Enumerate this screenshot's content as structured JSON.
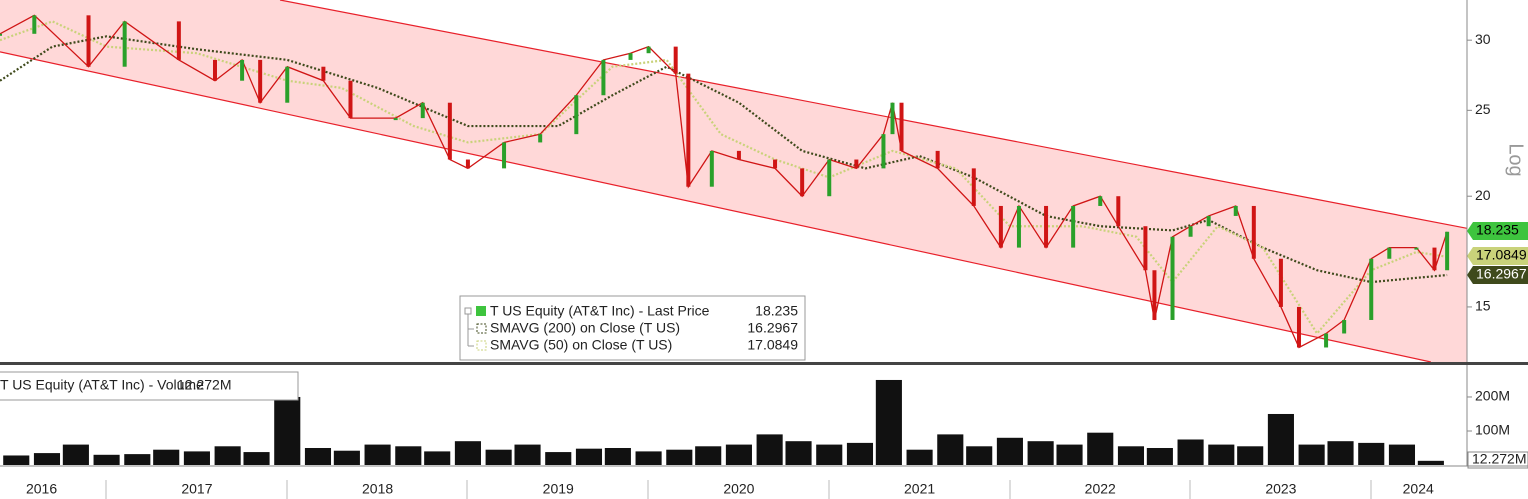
{
  "chart_data": [
    {
      "type": "line",
      "yscale": "log",
      "log_label": "Log",
      "xlim": [
        2016.41,
        2024.53
      ],
      "ylim": [
        13,
        33.3
      ],
      "yticks": [
        15,
        20,
        25,
        30
      ],
      "up_color": "#2aa02a",
      "down_color": "#d01515",
      "series": [
        {
          "name": "T US Equity (AT&T Inc) - Last Price",
          "color": "#3ec43e",
          "x": [
            2016.41,
            2016.6,
            2016.9,
            2017.1,
            2017.4,
            2017.6,
            2017.75,
            2017.85,
            2018.0,
            2018.2,
            2018.35,
            2018.6,
            2018.75,
            2018.9,
            2019.0,
            2019.2,
            2019.4,
            2019.6,
            2019.75,
            2019.9,
            2020.0,
            2020.15,
            2020.22,
            2020.35,
            2020.5,
            2020.7,
            2020.85,
            2021.0,
            2021.15,
            2021.3,
            2021.35,
            2021.4,
            2021.6,
            2021.8,
            2021.95,
            2022.05,
            2022.2,
            2022.35,
            2022.5,
            2022.6,
            2022.75,
            2022.8,
            2022.9,
            2023.0,
            2023.1,
            2023.25,
            2023.35,
            2023.5,
            2023.6,
            2023.75,
            2023.85,
            2024.0,
            2024.1,
            2024.25,
            2024.35,
            2024.42
          ],
          "values": [
            30.5,
            32,
            28,
            31.5,
            28.5,
            27,
            28.5,
            25.5,
            28,
            27,
            24.5,
            24.5,
            25.5,
            22,
            21.5,
            23,
            23.5,
            26,
            28.5,
            29,
            29.5,
            27.5,
            20.5,
            22.5,
            22,
            21.5,
            20,
            22,
            21.5,
            23.5,
            25.5,
            22.5,
            21.5,
            19.5,
            17.5,
            19.5,
            17.5,
            19.5,
            20,
            18.5,
            16.5,
            14.5,
            18,
            18.5,
            19,
            19.5,
            17,
            15,
            13.5,
            14,
            14.5,
            17,
            17.5,
            17.5,
            16.5,
            18.235
          ]
        },
        {
          "name": "SMAVG (200)  on Close (T US)",
          "color": "#3f4a1c",
          "text_color": "#ffffff",
          "x": [
            2016.41,
            2016.7,
            2017.0,
            2017.5,
            2018.0,
            2018.5,
            2019.0,
            2019.5,
            2019.8,
            2020.1,
            2020.5,
            2020.85,
            2021.2,
            2021.5,
            2021.8,
            2022.2,
            2022.5,
            2022.9,
            2023.1,
            2023.4,
            2023.7,
            2024.0,
            2024.42
          ],
          "values": [
            27,
            29.5,
            30.3,
            29.3,
            28.5,
            26.5,
            24,
            24,
            26,
            28,
            25.5,
            22.5,
            21.5,
            22.2,
            21,
            19,
            18.5,
            18.3,
            18.8,
            17.5,
            16.5,
            16,
            16.2967
          ]
        },
        {
          "name": "SMAVG (50)  on Close (T US)",
          "color": "#c9d27a",
          "text_color": "#000000",
          "x": [
            2016.41,
            2016.7,
            2017.0,
            2017.5,
            2018.0,
            2018.3,
            2018.7,
            2019.0,
            2019.4,
            2019.8,
            2020.1,
            2020.4,
            2020.7,
            2021.0,
            2021.35,
            2021.7,
            2022.0,
            2022.4,
            2022.7,
            2022.9,
            2023.15,
            2023.4,
            2023.7,
            2024.0,
            2024.25,
            2024.42
          ],
          "values": [
            30,
            31.5,
            29.5,
            29,
            27,
            26.5,
            24,
            23,
            23.5,
            28,
            28.5,
            23.5,
            22,
            21,
            22.5,
            21.5,
            18.5,
            18.5,
            18,
            16,
            18.5,
            17.5,
            14,
            16.5,
            17.3,
            17.0849
          ]
        }
      ],
      "channel": {
        "color": "#ffd8d8",
        "line_color": "#e8202a",
        "upper": {
          "x": [
            2017.96,
            2024.53
          ],
          "values": [
            33.3,
            18.4
          ]
        },
        "lower": {
          "x": [
            2016.41,
            2024.33
          ],
          "values": [
            29.1,
            13.0
          ]
        }
      }
    },
    {
      "type": "bar",
      "xlim": [
        2016.41,
        2024.53
      ],
      "ylim": [
        0,
        294
      ],
      "yticks": [
        {
          "value": 100,
          "label": "100M"
        },
        {
          "value": 200,
          "label": "200M"
        }
      ],
      "xticks": [
        {
          "value": 2016.64,
          "label": "2016"
        },
        {
          "value": 2017.5,
          "label": "2017"
        },
        {
          "value": 2018.5,
          "label": "2018"
        },
        {
          "value": 2019.5,
          "label": "2019"
        },
        {
          "value": 2020.5,
          "label": "2020"
        },
        {
          "value": 2021.5,
          "label": "2021"
        },
        {
          "value": 2022.5,
          "label": "2022"
        },
        {
          "value": 2023.5,
          "label": "2023"
        },
        {
          "value": 2024.26,
          "label": "2024"
        }
      ],
      "series": [
        {
          "name": "T US Equity (AT&T Inc) - Volume",
          "color": "#111111",
          "last_label": "12.272M",
          "x": [
            2016.5,
            2016.67,
            2016.83,
            2017,
            2017.17,
            2017.33,
            2017.5,
            2017.67,
            2017.83,
            2018,
            2018.17,
            2018.33,
            2018.5,
            2018.67,
            2018.83,
            2019,
            2019.17,
            2019.33,
            2019.5,
            2019.67,
            2019.83,
            2020,
            2020.17,
            2020.33,
            2020.5,
            2020.67,
            2020.83,
            2021,
            2021.17,
            2021.33,
            2021.5,
            2021.67,
            2021.83,
            2022,
            2022.17,
            2022.33,
            2022.5,
            2022.67,
            2022.83,
            2023,
            2023.17,
            2023.33,
            2023.5,
            2023.67,
            2023.83,
            2024,
            2024.17,
            2024.33
          ],
          "values": [
            28,
            35,
            60,
            30,
            32,
            45,
            40,
            55,
            38,
            200,
            50,
            42,
            60,
            55,
            40,
            70,
            45,
            60,
            38,
            48,
            50,
            40,
            45,
            55,
            60,
            90,
            70,
            60,
            65,
            250,
            45,
            90,
            55,
            80,
            70,
            60,
            95,
            55,
            50,
            75,
            60,
            55,
            150,
            60,
            70,
            65,
            60,
            12.272
          ]
        }
      ]
    }
  ]
}
